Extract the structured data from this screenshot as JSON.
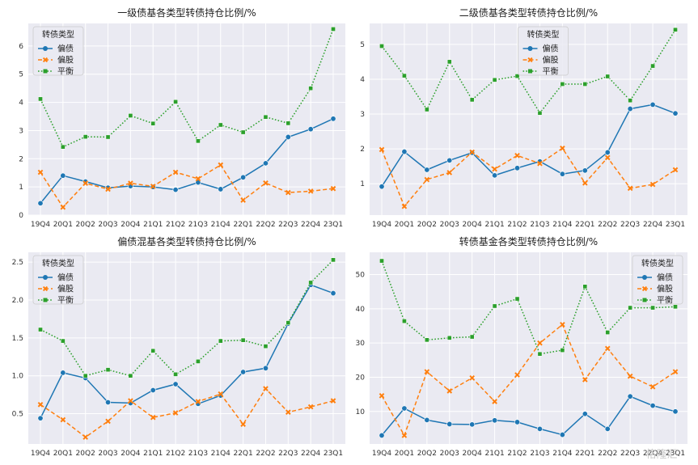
{
  "watermark": "格隆汇",
  "colors": {
    "偏债": "#1f77b4",
    "偏股": "#ff7f0e",
    "平衡": "#2ca02c",
    "panel_bg": "#eaeaf2",
    "grid": "#ffffff"
  },
  "chart_data": [
    {
      "type": "line",
      "title": "一级债基各类型转债持仓比例/%",
      "categories": [
        "19Q4",
        "20Q1",
        "20Q2",
        "20Q3",
        "20Q4",
        "21Q1",
        "21Q2",
        "21Q3",
        "21Q4",
        "22Q1",
        "22Q2",
        "22Q3",
        "22Q4",
        "23Q1"
      ],
      "ylim": [
        0,
        6.8
      ],
      "yticks": [
        0,
        1,
        2,
        3,
        4,
        5,
        6
      ],
      "legend": {
        "title": "转债类型",
        "position": "top-left"
      },
      "series": [
        {
          "name": "偏债",
          "values": [
            0.42,
            1.4,
            1.19,
            0.97,
            1.03,
            1.0,
            0.9,
            1.16,
            0.92,
            1.34,
            1.84,
            2.77,
            3.05,
            3.42
          ]
        },
        {
          "name": "偏股",
          "values": [
            1.52,
            0.28,
            1.13,
            0.92,
            1.13,
            1.02,
            1.52,
            1.29,
            1.78,
            0.53,
            1.14,
            0.8,
            0.85,
            0.94
          ]
        },
        {
          "name": "平衡",
          "values": [
            4.12,
            2.42,
            2.78,
            2.77,
            3.53,
            3.25,
            4.02,
            2.63,
            3.2,
            2.94,
            3.48,
            3.26,
            4.5,
            6.6
          ]
        }
      ]
    },
    {
      "type": "line",
      "title": "二级债基各类型转债持仓比例/%",
      "categories": [
        "19Q4",
        "20Q1",
        "20Q2",
        "20Q3",
        "20Q4",
        "21Q1",
        "21Q2",
        "21Q3",
        "21Q4",
        "22Q1",
        "22Q2",
        "22Q3",
        "22Q4",
        "23Q1"
      ],
      "ylim": [
        0.1,
        5.6
      ],
      "yticks": [
        1,
        2,
        3,
        4,
        5
      ],
      "legend": {
        "title": "转债类型",
        "position": "top-center"
      },
      "series": [
        {
          "name": "偏债",
          "values": [
            0.92,
            1.92,
            1.4,
            1.67,
            1.89,
            1.24,
            1.45,
            1.64,
            1.28,
            1.38,
            1.9,
            3.15,
            3.27,
            3.02
          ]
        },
        {
          "name": "偏股",
          "values": [
            1.98,
            0.35,
            1.12,
            1.32,
            1.91,
            1.42,
            1.81,
            1.58,
            2.02,
            1.02,
            1.75,
            0.87,
            0.98,
            1.4
          ]
        },
        {
          "name": "平衡",
          "values": [
            4.95,
            4.1,
            3.13,
            4.5,
            3.41,
            3.98,
            4.09,
            3.03,
            3.86,
            3.86,
            4.08,
            3.39,
            4.38,
            5.42
          ]
        }
      ]
    },
    {
      "type": "line",
      "title": "偏债混基各类型转债持仓比例/%",
      "categories": [
        "19Q4",
        "20Q1",
        "20Q2",
        "20Q3",
        "20Q4",
        "21Q1",
        "21Q2",
        "21Q3",
        "21Q4",
        "22Q1",
        "22Q2",
        "22Q3",
        "22Q4",
        "23Q1"
      ],
      "ylim": [
        0.1,
        2.63
      ],
      "yticks": [
        0.5,
        1.0,
        1.5,
        2.0,
        2.5
      ],
      "legend": {
        "title": "转债类型",
        "position": "top-left"
      },
      "series": [
        {
          "name": "偏债",
          "values": [
            0.44,
            1.04,
            0.97,
            0.65,
            0.64,
            0.81,
            0.89,
            0.63,
            0.74,
            1.05,
            1.1,
            1.69,
            2.2,
            2.09
          ]
        },
        {
          "name": "偏股",
          "values": [
            0.62,
            0.42,
            0.19,
            0.4,
            0.67,
            0.45,
            0.51,
            0.66,
            0.76,
            0.36,
            0.83,
            0.52,
            0.59,
            0.67
          ]
        },
        {
          "name": "平衡",
          "values": [
            1.61,
            1.46,
            1.0,
            1.08,
            1.0,
            1.33,
            1.02,
            1.19,
            1.46,
            1.47,
            1.39,
            1.7,
            2.23,
            2.53
          ]
        }
      ]
    },
    {
      "type": "line",
      "title": "转债基金各类型转债持仓比例/%",
      "categories": [
        "19Q4",
        "20Q1",
        "20Q2",
        "20Q3",
        "20Q4",
        "21Q1",
        "21Q2",
        "21Q3",
        "21Q4",
        "22Q1",
        "22Q2",
        "22Q3",
        "22Q4",
        "23Q1"
      ],
      "ylim": [
        0.5,
        56.5
      ],
      "yticks": [
        10,
        20,
        30,
        40,
        50
      ],
      "legend": {
        "title": "转债类型",
        "position": "top-right"
      },
      "series": [
        {
          "name": "偏债",
          "values": [
            3.0,
            10.9,
            7.5,
            6.3,
            6.2,
            7.4,
            6.9,
            4.9,
            3.2,
            9.3,
            4.9,
            14.4,
            11.7,
            10.0
          ]
        },
        {
          "name": "偏股",
          "values": [
            14.6,
            3.0,
            21.6,
            16.0,
            19.8,
            12.9,
            20.7,
            30.0,
            35.4,
            19.3,
            28.4,
            20.3,
            17.2,
            21.6
          ]
        },
        {
          "name": "平衡",
          "values": [
            54.0,
            36.4,
            30.9,
            31.5,
            31.8,
            40.8,
            42.9,
            26.8,
            27.9,
            46.5,
            33.1,
            40.3,
            40.3,
            40.6
          ]
        }
      ]
    }
  ]
}
